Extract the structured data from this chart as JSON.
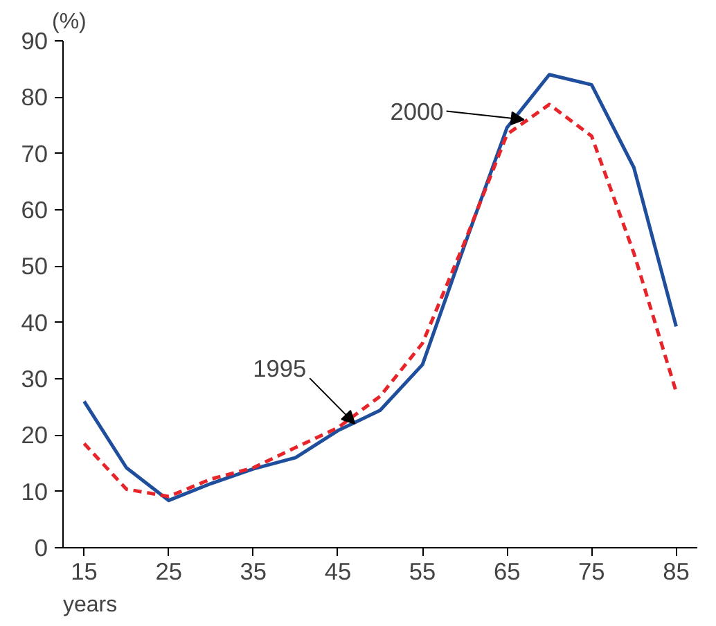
{
  "chart_data": {
    "type": "line",
    "xlabel": "years",
    "ylabel": "(%)",
    "x": [
      15,
      20,
      25,
      30,
      35,
      40,
      45,
      50,
      55,
      60,
      65,
      70,
      75,
      80,
      85
    ],
    "series": [
      {
        "color": "#1f4e9c",
        "line_style": "solid",
        "values": [
          26,
          14.2,
          8.4,
          11.4,
          14,
          16,
          20.8,
          24.4,
          32.5,
          53.8,
          74.6,
          84,
          82.2,
          67.5,
          39.3
        ]
      },
      {
        "color": "#e8242b",
        "line_style": "dashed",
        "values": [
          18.5,
          10.4,
          9.1,
          12.2,
          14.2,
          17.8,
          21.3,
          26.9,
          36.3,
          54.3,
          73.4,
          78.7,
          73.1,
          52.3,
          27.7
        ]
      }
    ],
    "annotations": [
      {
        "text": "2000",
        "x": 67,
        "y": 76
      },
      {
        "text": "1995",
        "x": 47,
        "y": 22
      }
    ],
    "xlim": [
      12.5,
      87.5
    ],
    "ylim": [
      0,
      90
    ],
    "xticks": [
      15,
      25,
      35,
      45,
      55,
      65,
      75,
      85
    ],
    "yticks": [
      0,
      10,
      20,
      30,
      40,
      50,
      60,
      70,
      80,
      90
    ],
    "grid": false
  }
}
